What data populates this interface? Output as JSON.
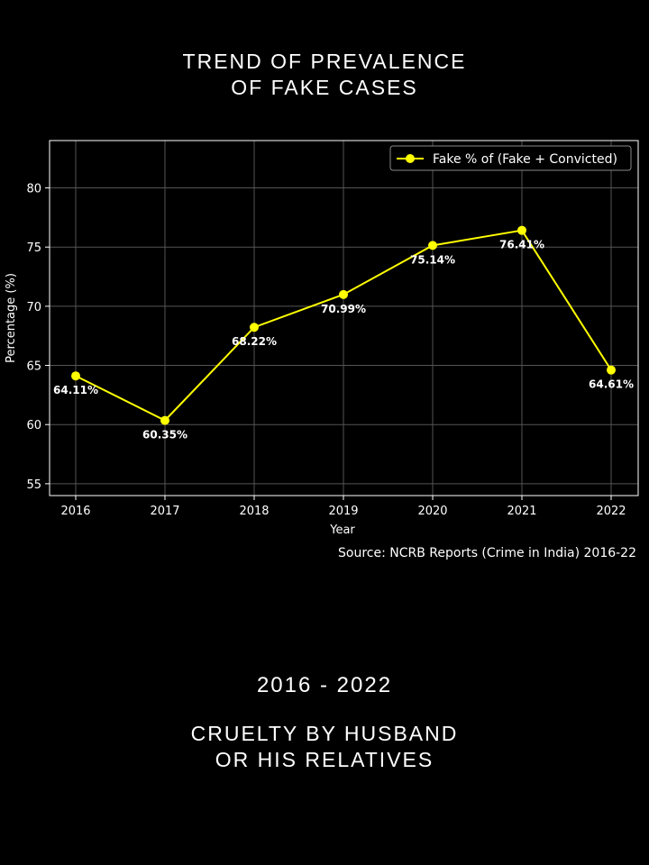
{
  "header": {
    "title_lines": [
      "TREND OF PREVALENCE",
      "OF FAKE CASES"
    ]
  },
  "footer": {
    "range": "2016 - 2022",
    "subject_lines": [
      "CRUELTY BY HUSBAND",
      "OR HIS RELATIVES"
    ]
  },
  "source": "Source: NCRB Reports (Crime in India) 2016-22",
  "colors": {
    "background": "#000000",
    "series": "#ffff00",
    "grid": "#555555",
    "axis": "#ffffff",
    "text": "#ffffff"
  },
  "chart_data": {
    "type": "line",
    "title": "",
    "xlabel": "Year",
    "ylabel": "Percentage (%)",
    "x": [
      "2016",
      "2017",
      "2018",
      "2019",
      "2020",
      "2021",
      "2022"
    ],
    "ylim": [
      54,
      84
    ],
    "yticks": [
      55,
      60,
      65,
      70,
      75,
      80
    ],
    "grid": true,
    "legend_position": "top-right",
    "series": [
      {
        "name": "Fake % of (Fake + Convicted)",
        "values": [
          64.11,
          60.35,
          68.22,
          70.99,
          75.14,
          76.41,
          64.61
        ],
        "data_labels": [
          "64.11%",
          "60.35%",
          "68.22%",
          "70.99%",
          "75.14%",
          "76.41%",
          "64.61%"
        ],
        "color": "#ffff00",
        "marker": "circle"
      }
    ]
  }
}
